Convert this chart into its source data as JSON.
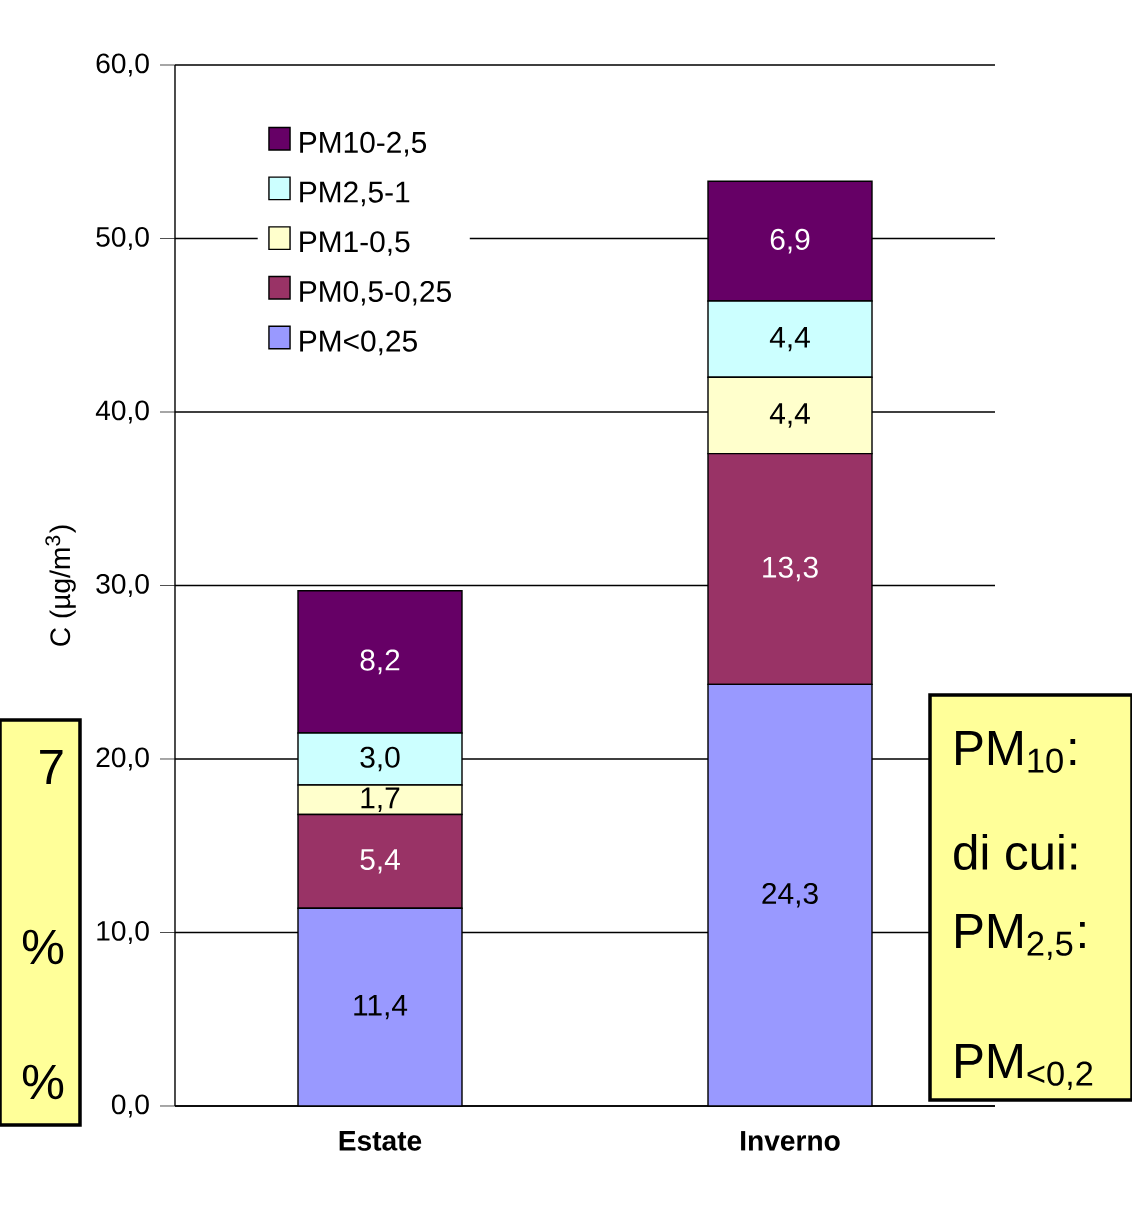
{
  "chart_data": {
    "type": "bar",
    "stacked": true,
    "ylabel": "C (µg/m$^{3}$)",
    "categories": [
      "Estate",
      "Inverno"
    ],
    "series": [
      {
        "name": "PM<0,25",
        "color": "#9999ff",
        "values": [
          11.4,
          24.3
        ],
        "value_labels": [
          "11,4",
          "24,3"
        ]
      },
      {
        "name": "PM0,5-0,25",
        "color": "#993366",
        "values": [
          5.4,
          13.3
        ],
        "value_labels": [
          "5,4",
          "13,3"
        ]
      },
      {
        "name": "PM1-0,5",
        "color": "#ffffcc",
        "values": [
          1.7,
          4.4
        ],
        "value_labels": [
          "1,7",
          "4,4"
        ]
      },
      {
        "name": "PM2,5-1",
        "color": "#ccffff",
        "values": [
          3.0,
          4.4
        ],
        "value_labels": [
          "3,0",
          "4,4"
        ]
      },
      {
        "name": "PM10-2,5",
        "color": "#660066",
        "values": [
          8.2,
          6.9
        ],
        "value_labels": [
          "8,2",
          "6,9"
        ]
      }
    ],
    "ylim": [
      0,
      60
    ],
    "yticks": [
      {
        "value": 0,
        "label": "0,0"
      },
      {
        "value": 10,
        "label": "10,0"
      },
      {
        "value": 20,
        "label": "20,0"
      },
      {
        "value": 30,
        "label": "30,0"
      },
      {
        "value": 40,
        "label": "40,0"
      },
      {
        "value": 50,
        "label": "50,0"
      },
      {
        "value": 60,
        "label": "60,0"
      }
    ],
    "grid": "y",
    "legend": "top left",
    "annotations": [
      "7",
      "%",
      "%",
      "PM$_{10}$:",
      "di cui:",
      "PM$_{2,5}$:",
      "PM$_{<0,2}$"
    ]
  }
}
